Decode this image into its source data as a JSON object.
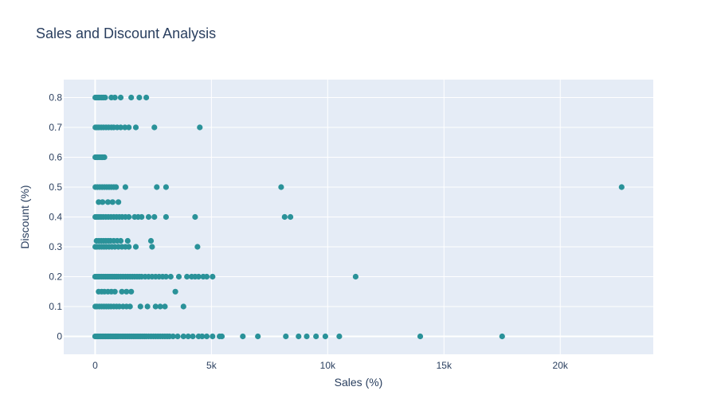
{
  "chart_data": {
    "type": "scatter",
    "title": "Sales and Discount Analysis",
    "xlabel": "Sales (%)",
    "ylabel": "Discount (%)",
    "xlim": [
      -1350,
      24000
    ],
    "ylim": [
      -0.06,
      0.86
    ],
    "x_ticks": [
      0,
      5000,
      10000,
      15000,
      20000
    ],
    "x_tick_labels": [
      "0",
      "5k",
      "10k",
      "15k",
      "20k"
    ],
    "y_ticks": [
      0,
      0.1,
      0.2,
      0.3,
      0.4,
      0.5,
      0.6,
      0.7,
      0.8
    ],
    "y_tick_labels": [
      "0",
      "0.1",
      "0.2",
      "0.3",
      "0.4",
      "0.5",
      "0.6",
      "0.7",
      "0.8"
    ],
    "grid": true,
    "legend": "none",
    "colors": {
      "marker": "#2a9299",
      "plot_bg": "#e5ecf6",
      "grid": "#ffffff",
      "text": "#2a3f5f"
    },
    "series": [
      {
        "values": [
          [
            5,
            0.8
          ],
          [
            60,
            0.8
          ],
          [
            130,
            0.8
          ],
          [
            200,
            0.8
          ],
          [
            280,
            0.8
          ],
          [
            350,
            0.8
          ],
          [
            430,
            0.8
          ],
          [
            700,
            0.8
          ],
          [
            850,
            0.8
          ],
          [
            1100,
            0.8
          ],
          [
            1550,
            0.8
          ],
          [
            1900,
            0.8
          ],
          [
            2200,
            0.8
          ],
          [
            10,
            0.7
          ],
          [
            80,
            0.7
          ],
          [
            160,
            0.7
          ],
          [
            260,
            0.7
          ],
          [
            360,
            0.7
          ],
          [
            470,
            0.7
          ],
          [
            580,
            0.7
          ],
          [
            700,
            0.7
          ],
          [
            800,
            0.7
          ],
          [
            950,
            0.7
          ],
          [
            1100,
            0.7
          ],
          [
            1280,
            0.7
          ],
          [
            1450,
            0.7
          ],
          [
            1750,
            0.7
          ],
          [
            2550,
            0.7
          ],
          [
            4500,
            0.7
          ],
          [
            5,
            0.6
          ],
          [
            60,
            0.6
          ],
          [
            120,
            0.6
          ],
          [
            190,
            0.6
          ],
          [
            260,
            0.6
          ],
          [
            330,
            0.6
          ],
          [
            400,
            0.6
          ],
          [
            10,
            0.5
          ],
          [
            100,
            0.5
          ],
          [
            200,
            0.5
          ],
          [
            300,
            0.5
          ],
          [
            400,
            0.5
          ],
          [
            500,
            0.5
          ],
          [
            600,
            0.5
          ],
          [
            700,
            0.5
          ],
          [
            800,
            0.5
          ],
          [
            900,
            0.5
          ],
          [
            1300,
            0.5
          ],
          [
            2650,
            0.5
          ],
          [
            3050,
            0.5
          ],
          [
            8000,
            0.5
          ],
          [
            22640,
            0.5
          ],
          [
            150,
            0.45
          ],
          [
            320,
            0.45
          ],
          [
            550,
            0.45
          ],
          [
            750,
            0.45
          ],
          [
            1000,
            0.45
          ],
          [
            5,
            0.4
          ],
          [
            80,
            0.4
          ],
          [
            160,
            0.4
          ],
          [
            250,
            0.4
          ],
          [
            350,
            0.4
          ],
          [
            460,
            0.4
          ],
          [
            570,
            0.4
          ],
          [
            680,
            0.4
          ],
          [
            800,
            0.4
          ],
          [
            920,
            0.4
          ],
          [
            1040,
            0.4
          ],
          [
            1160,
            0.4
          ],
          [
            1300,
            0.4
          ],
          [
            1450,
            0.4
          ],
          [
            1700,
            0.4
          ],
          [
            1850,
            0.4
          ],
          [
            2000,
            0.4
          ],
          [
            2300,
            0.4
          ],
          [
            2550,
            0.4
          ],
          [
            3050,
            0.4
          ],
          [
            4300,
            0.4
          ],
          [
            8150,
            0.4
          ],
          [
            8400,
            0.4
          ],
          [
            60,
            0.32
          ],
          [
            160,
            0.32
          ],
          [
            260,
            0.32
          ],
          [
            360,
            0.32
          ],
          [
            460,
            0.32
          ],
          [
            560,
            0.32
          ],
          [
            660,
            0.32
          ],
          [
            800,
            0.32
          ],
          [
            950,
            0.32
          ],
          [
            1100,
            0.32
          ],
          [
            1400,
            0.32
          ],
          [
            2400,
            0.32
          ],
          [
            5,
            0.3
          ],
          [
            80,
            0.3
          ],
          [
            180,
            0.3
          ],
          [
            280,
            0.3
          ],
          [
            380,
            0.3
          ],
          [
            480,
            0.3
          ],
          [
            600,
            0.3
          ],
          [
            720,
            0.3
          ],
          [
            850,
            0.3
          ],
          [
            1000,
            0.3
          ],
          [
            1150,
            0.3
          ],
          [
            1300,
            0.3
          ],
          [
            1450,
            0.3
          ],
          [
            1750,
            0.3
          ],
          [
            2450,
            0.3
          ],
          [
            4400,
            0.3
          ],
          [
            0,
            0.2
          ],
          [
            60,
            0.2
          ],
          [
            130,
            0.2
          ],
          [
            200,
            0.2
          ],
          [
            280,
            0.2
          ],
          [
            360,
            0.2
          ],
          [
            440,
            0.2
          ],
          [
            520,
            0.2
          ],
          [
            600,
            0.2
          ],
          [
            680,
            0.2
          ],
          [
            760,
            0.2
          ],
          [
            840,
            0.2
          ],
          [
            920,
            0.2
          ],
          [
            1000,
            0.2
          ],
          [
            1100,
            0.2
          ],
          [
            1200,
            0.2
          ],
          [
            1300,
            0.2
          ],
          [
            1400,
            0.2
          ],
          [
            1500,
            0.2
          ],
          [
            1600,
            0.2
          ],
          [
            1700,
            0.2
          ],
          [
            1800,
            0.2
          ],
          [
            1900,
            0.2
          ],
          [
            2000,
            0.2
          ],
          [
            2150,
            0.2
          ],
          [
            2300,
            0.2
          ],
          [
            2450,
            0.2
          ],
          [
            2600,
            0.2
          ],
          [
            2750,
            0.2
          ],
          [
            2900,
            0.2
          ],
          [
            3050,
            0.2
          ],
          [
            3250,
            0.2
          ],
          [
            3600,
            0.2
          ],
          [
            3950,
            0.2
          ],
          [
            4150,
            0.2
          ],
          [
            4300,
            0.2
          ],
          [
            4450,
            0.2
          ],
          [
            4650,
            0.2
          ],
          [
            4800,
            0.2
          ],
          [
            5050,
            0.2
          ],
          [
            11200,
            0.2
          ],
          [
            150,
            0.15
          ],
          [
            280,
            0.15
          ],
          [
            400,
            0.15
          ],
          [
            550,
            0.15
          ],
          [
            700,
            0.15
          ],
          [
            850,
            0.15
          ],
          [
            1150,
            0.15
          ],
          [
            1350,
            0.15
          ],
          [
            1550,
            0.15
          ],
          [
            3450,
            0.15
          ],
          [
            5,
            0.1
          ],
          [
            80,
            0.1
          ],
          [
            180,
            0.1
          ],
          [
            280,
            0.1
          ],
          [
            380,
            0.1
          ],
          [
            480,
            0.1
          ],
          [
            580,
            0.1
          ],
          [
            680,
            0.1
          ],
          [
            800,
            0.1
          ],
          [
            920,
            0.1
          ],
          [
            1040,
            0.1
          ],
          [
            1200,
            0.1
          ],
          [
            1350,
            0.1
          ],
          [
            1500,
            0.1
          ],
          [
            1950,
            0.1
          ],
          [
            2250,
            0.1
          ],
          [
            2600,
            0.1
          ],
          [
            2800,
            0.1
          ],
          [
            3000,
            0.1
          ],
          [
            3800,
            0.1
          ],
          [
            0,
            0
          ],
          [
            50,
            0
          ],
          [
            100,
            0
          ],
          [
            150,
            0
          ],
          [
            200,
            0
          ],
          [
            250,
            0
          ],
          [
            300,
            0
          ],
          [
            350,
            0
          ],
          [
            400,
            0
          ],
          [
            450,
            0
          ],
          [
            500,
            0
          ],
          [
            550,
            0
          ],
          [
            600,
            0
          ],
          [
            650,
            0
          ],
          [
            700,
            0
          ],
          [
            750,
            0
          ],
          [
            800,
            0
          ],
          [
            850,
            0
          ],
          [
            900,
            0
          ],
          [
            950,
            0
          ],
          [
            1000,
            0
          ],
          [
            1080,
            0
          ],
          [
            1160,
            0
          ],
          [
            1240,
            0
          ],
          [
            1320,
            0
          ],
          [
            1400,
            0
          ],
          [
            1480,
            0
          ],
          [
            1560,
            0
          ],
          [
            1640,
            0
          ],
          [
            1720,
            0
          ],
          [
            1800,
            0
          ],
          [
            1880,
            0
          ],
          [
            1960,
            0
          ],
          [
            2040,
            0
          ],
          [
            2120,
            0
          ],
          [
            2200,
            0
          ],
          [
            2300,
            0
          ],
          [
            2400,
            0
          ],
          [
            2500,
            0
          ],
          [
            2600,
            0
          ],
          [
            2700,
            0
          ],
          [
            2800,
            0
          ],
          [
            2900,
            0
          ],
          [
            3000,
            0
          ],
          [
            3100,
            0
          ],
          [
            3200,
            0
          ],
          [
            3350,
            0
          ],
          [
            3550,
            0
          ],
          [
            3800,
            0
          ],
          [
            4000,
            0
          ],
          [
            4200,
            0
          ],
          [
            4450,
            0
          ],
          [
            4600,
            0
          ],
          [
            4800,
            0
          ],
          [
            5050,
            0
          ],
          [
            5350,
            0
          ],
          [
            5450,
            0
          ],
          [
            6350,
            0
          ],
          [
            7000,
            0
          ],
          [
            8200,
            0
          ],
          [
            8750,
            0
          ],
          [
            9100,
            0
          ],
          [
            9500,
            0
          ],
          [
            9900,
            0
          ],
          [
            10500,
            0
          ],
          [
            13980,
            0
          ],
          [
            17500,
            0
          ]
        ]
      }
    ]
  }
}
